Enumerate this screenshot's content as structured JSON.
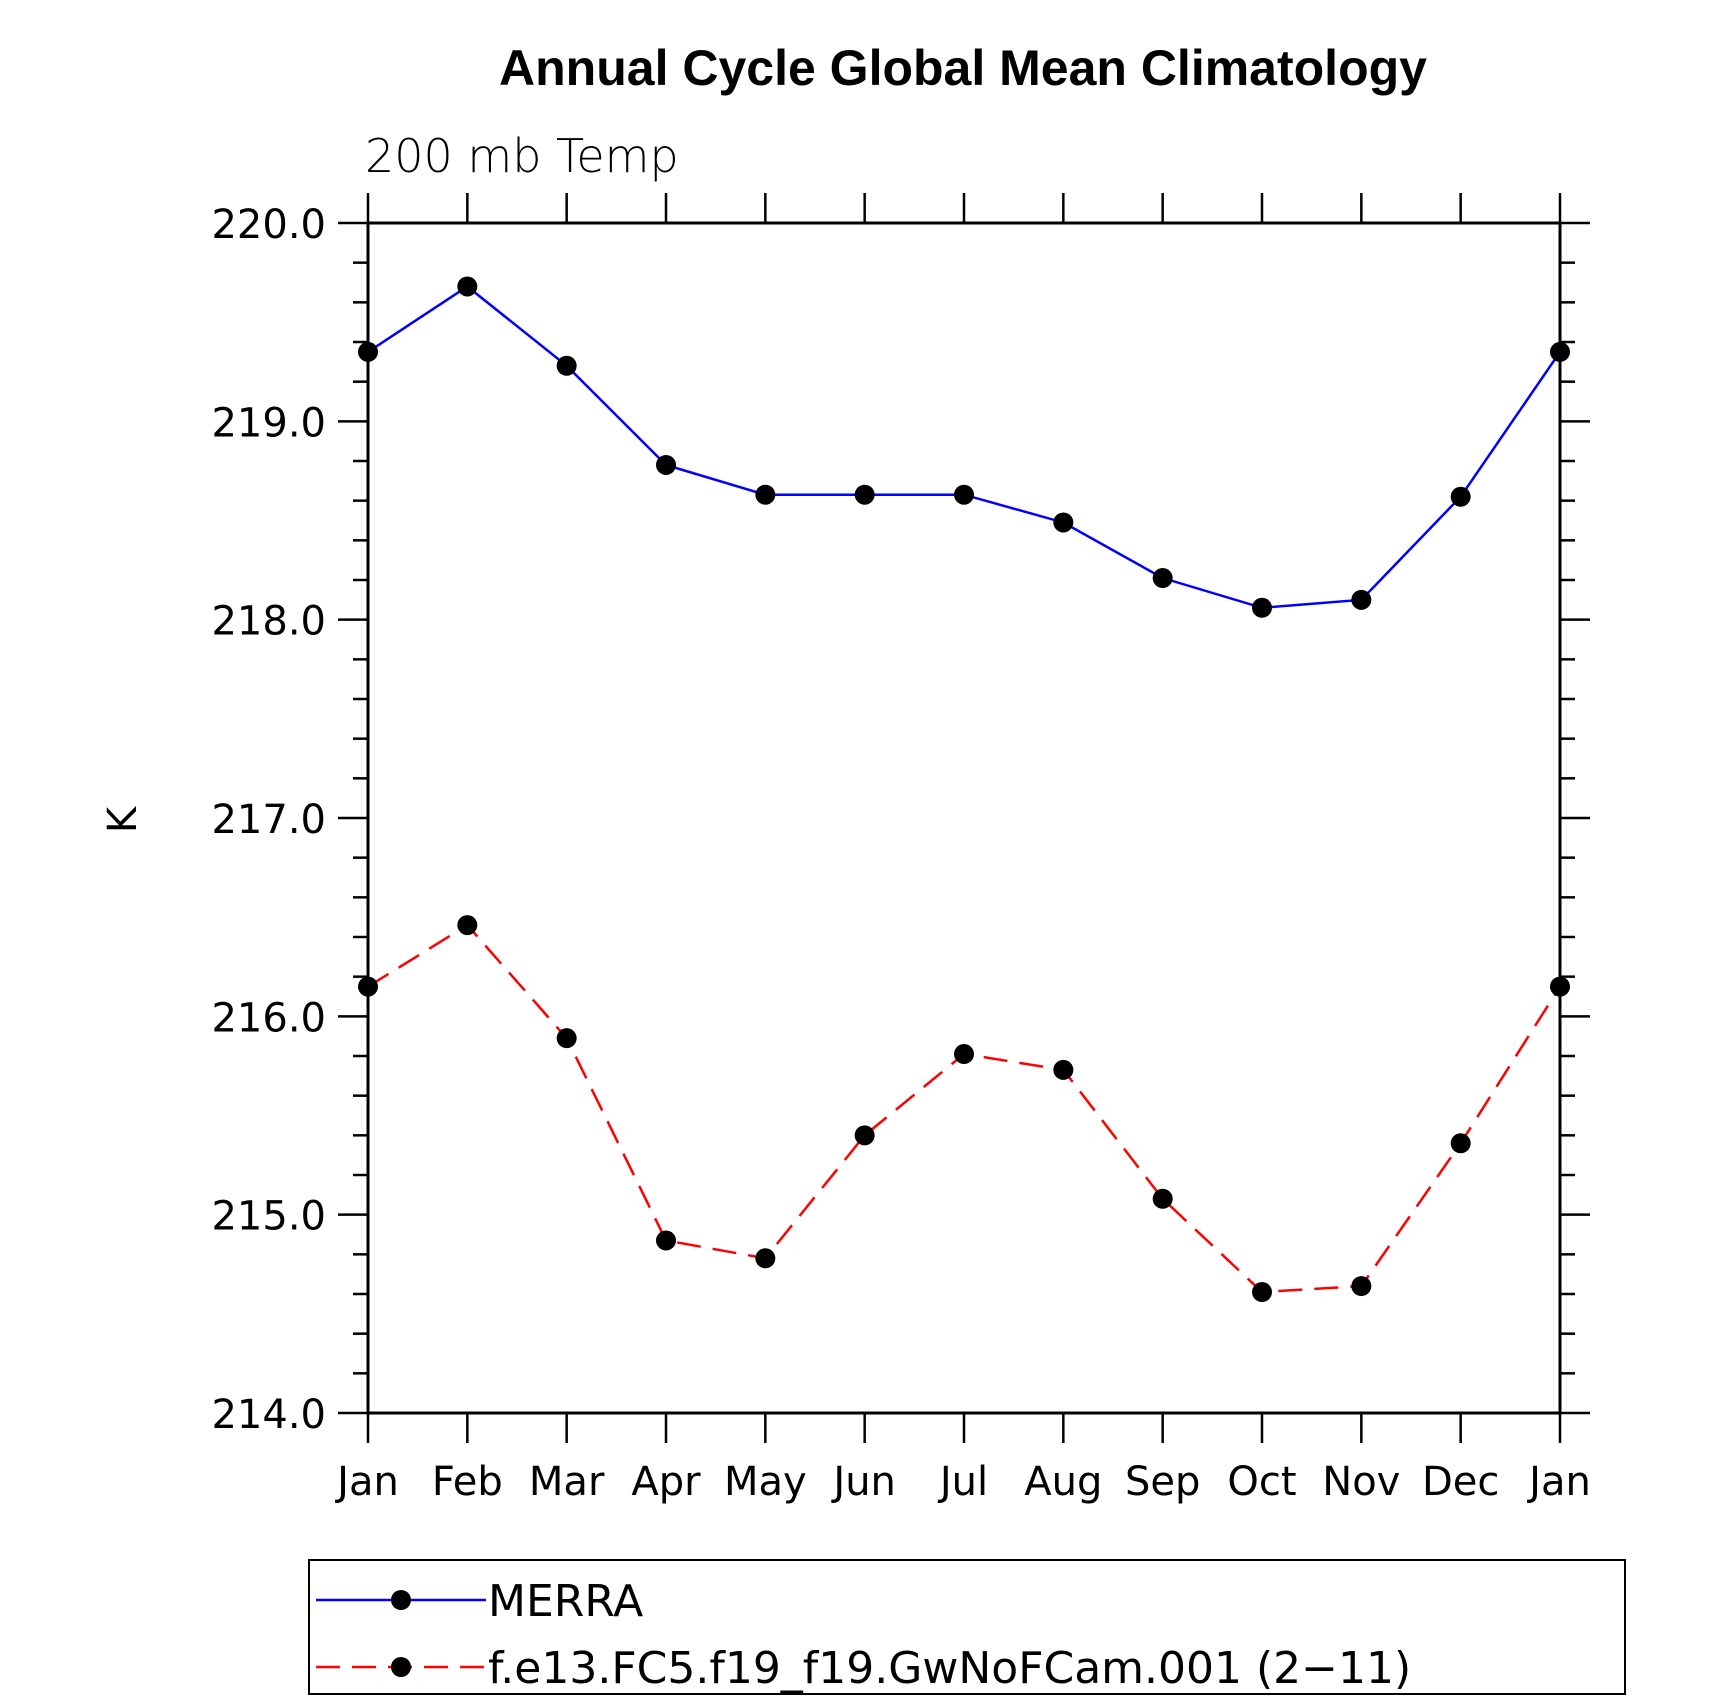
{
  "chart_data": {
    "type": "line",
    "title": "Annual Cycle Global Mean Climatology",
    "subtitle": "200 mb Temp",
    "xlabel": "",
    "ylabel": "K",
    "categories": [
      "Jan",
      "Feb",
      "Mar",
      "Apr",
      "May",
      "Jun",
      "Jul",
      "Aug",
      "Sep",
      "Oct",
      "Nov",
      "Dec",
      "Jan"
    ],
    "ylim": [
      214.0,
      220.0
    ],
    "yticks": [
      "214.0",
      "215.0",
      "216.0",
      "217.0",
      "218.0",
      "219.0",
      "220.0"
    ],
    "grid": false,
    "legend_position": "bottom",
    "series": [
      {
        "name": "MERRA",
        "color": "#0000ff",
        "line_style": "solid",
        "marker": "filled-circle",
        "values": [
          219.35,
          219.68,
          219.28,
          218.78,
          218.63,
          218.63,
          218.63,
          218.49,
          218.21,
          218.06,
          218.1,
          218.62,
          219.35
        ]
      },
      {
        "name": "f.e13.FC5.f19_f19.GwNoFCam.001 (2−11)",
        "color": "#ff0000",
        "line_style": "dashed",
        "marker": "filled-circle",
        "values": [
          216.15,
          216.46,
          215.89,
          214.87,
          214.78,
          215.4,
          215.81,
          215.73,
          215.08,
          214.61,
          214.64,
          215.36,
          216.15
        ]
      }
    ]
  }
}
